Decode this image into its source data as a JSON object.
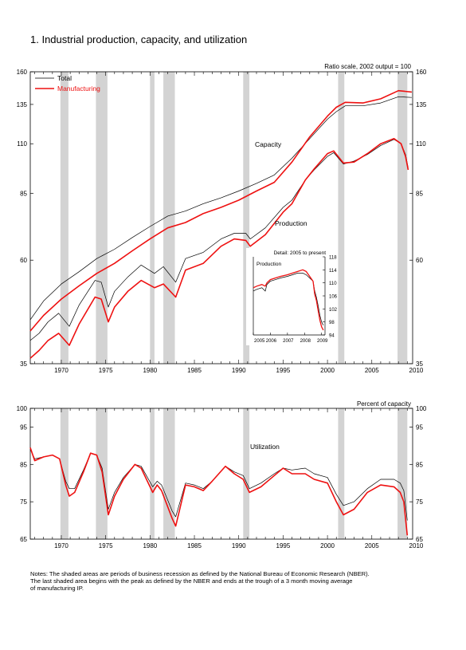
{
  "page": {
    "title": "1.  Industrial production, capacity, and utilization",
    "notes_line1": "Notes: The shaded areas are periods of business recession as defined by the National Bureau of Economic Research (NBER).",
    "notes_line2": "The last shaded area begins with the peak as defined by the NBER and ends at the trough of a 3 month moving average",
    "notes_line3": "of manufacturing IP."
  },
  "colors": {
    "total": "#000000",
    "manufacturing": "#ee1111",
    "recession": "#d3d3d3"
  },
  "chart_data": [
    {
      "id": "capacity-production",
      "type": "line",
      "scale": "log",
      "scale_note": "Ratio scale, 2002 output = 100",
      "xlim": [
        1966.5,
        2009.6
      ],
      "ylim": [
        35,
        160
      ],
      "yticks": [
        35,
        60,
        85,
        110,
        135,
        160
      ],
      "xticks": [
        1970,
        1975,
        1980,
        1985,
        1990,
        1995,
        2000,
        2005,
        2010
      ],
      "legend": {
        "placement": "top-left",
        "entries": [
          "Total",
          "Manufacturing"
        ]
      },
      "annotations": {
        "capacity": "Capacity",
        "production": "Production"
      },
      "recessions": [
        [
          1969.9,
          1970.8
        ],
        [
          1973.9,
          1975.2
        ],
        [
          1980.0,
          1980.5
        ],
        [
          1981.5,
          1982.8
        ],
        [
          1990.5,
          1991.2
        ],
        [
          2001.2,
          2001.9
        ],
        [
          2007.9,
          2009.0
        ]
      ],
      "series": [
        {
          "name": "Total",
          "role": "capacity",
          "x": [
            1966.5,
            1968,
            1970,
            1972,
            1974,
            1976,
            1978,
            1980,
            1982,
            1984,
            1986,
            1988,
            1990,
            1992,
            1994,
            1996,
            1998,
            2000,
            2001,
            2002,
            2004,
            2006,
            2008,
            2009.5
          ],
          "y": [
            44,
            48.5,
            53,
            56.5,
            60.5,
            63.5,
            67.5,
            71.5,
            75.5,
            77.5,
            80.5,
            83,
            86,
            89.5,
            93.5,
            102,
            113,
            125,
            130,
            134,
            134,
            136,
            140.5,
            140
          ]
        },
        {
          "name": "Manufacturing",
          "role": "capacity",
          "x": [
            1966.5,
            1968,
            1970,
            1972,
            1974,
            1976,
            1978,
            1980,
            1982,
            1984,
            1986,
            1988,
            1990,
            1992,
            1994,
            1996,
            1998,
            2000,
            2001,
            2002,
            2004,
            2006,
            2008,
            2009.5
          ],
          "y": [
            41.5,
            45,
            49,
            52.5,
            56,
            59,
            63,
            67,
            71,
            73,
            76.5,
            79,
            82,
            86,
            90,
            100,
            114,
            127,
            133,
            136.5,
            136,
            139,
            145,
            144
          ]
        },
        {
          "name": "Total",
          "role": "production",
          "x": [
            1966.5,
            1967.5,
            1968.5,
            1969.7,
            1970.9,
            1972,
            1973.8,
            1974.5,
            1975.3,
            1976,
            1977.5,
            1979,
            1980.5,
            1981.5,
            1982.9,
            1984,
            1986,
            1988,
            1989.5,
            1990.8,
            1991.3,
            1993,
            1995,
            1996,
            1997.5,
            1998.5,
            2000,
            2000.7,
            2001.8,
            2003,
            2004.5,
            2006,
            2007.5,
            2008.3,
            2008.8,
            2009.1
          ],
          "y": [
            39.5,
            41,
            43.5,
            45.5,
            42.5,
            47.5,
            54,
            53.5,
            47,
            51,
            55,
            58.5,
            56,
            58,
            53.5,
            60.5,
            62.5,
            67,
            69,
            69,
            67,
            71,
            79,
            82,
            91,
            96,
            103,
            105,
            99,
            100.5,
            104,
            109,
            112.5,
            110,
            104,
            97
          ]
        },
        {
          "name": "Manufacturing",
          "role": "production",
          "x": [
            1966.5,
            1967.5,
            1968.5,
            1969.7,
            1970.9,
            1972,
            1973.8,
            1974.5,
            1975.3,
            1976,
            1977.5,
            1979,
            1980.5,
            1981.5,
            1982.9,
            1984,
            1986,
            1988,
            1989.5,
            1990.8,
            1991.3,
            1993,
            1995,
            1996,
            1997.5,
            1998.5,
            2000,
            2000.7,
            2001.8,
            2003,
            2004.5,
            2006,
            2007.5,
            2008.3,
            2008.8,
            2009.1
          ],
          "y": [
            36,
            37.5,
            39.5,
            41,
            38.5,
            43,
            49.5,
            49,
            43.5,
            47,
            51,
            54,
            52,
            53,
            49.5,
            57,
            59,
            64.5,
            67,
            66.5,
            64.5,
            68.5,
            77,
            80.5,
            91,
            96.5,
            104.5,
            106,
            99.5,
            100,
            104.5,
            110,
            113,
            110,
            103,
            96
          ]
        }
      ]
    },
    {
      "id": "detail-production",
      "type": "line",
      "title": "Detail: 2005 to present",
      "label": "Production",
      "xlim": [
        2005,
        2009.2
      ],
      "ylim": [
        94,
        118
      ],
      "yticks": [
        94,
        98,
        102,
        106,
        110,
        114,
        118
      ],
      "xticks": [
        2005,
        2006,
        2007,
        2008,
        2009
      ],
      "series": [
        {
          "name": "Total",
          "x": [
            2005,
            2005.2,
            2005.5,
            2005.7,
            2005.8,
            2006,
            2006.3,
            2006.6,
            2007,
            2007.3,
            2007.6,
            2007.9,
            2008.1,
            2008.3,
            2008.5,
            2008.6,
            2008.7,
            2008.8,
            2008.9,
            2009,
            2009.1
          ],
          "y": [
            107.5,
            108,
            108.5,
            107.5,
            109.5,
            110.5,
            111,
            111.5,
            112,
            112.5,
            113,
            113,
            112.5,
            111.5,
            110.5,
            107.5,
            105.5,
            103,
            100,
            98,
            97
          ]
        },
        {
          "name": "Manufacturing",
          "x": [
            2005,
            2005.2,
            2005.5,
            2005.7,
            2005.8,
            2006,
            2006.3,
            2006.6,
            2007,
            2007.3,
            2007.6,
            2007.9,
            2008.1,
            2008.3,
            2008.5,
            2008.6,
            2008.7,
            2008.8,
            2008.9,
            2009,
            2009.1
          ],
          "y": [
            108.5,
            109,
            109.5,
            109,
            110,
            111,
            111.5,
            112,
            112.5,
            113,
            113.5,
            114,
            113.5,
            112,
            110.5,
            106.5,
            104.5,
            101.5,
            98.5,
            96.5,
            95.5
          ]
        }
      ]
    },
    {
      "id": "utilization",
      "type": "line",
      "scale_note": "Percent of capacity",
      "annotation": "Utilization",
      "xlim": [
        1966.5,
        2009.6
      ],
      "ylim": [
        65,
        100
      ],
      "yticks": [
        65,
        75,
        85,
        95,
        100
      ],
      "xticks": [
        1970,
        1975,
        1980,
        1985,
        1990,
        1995,
        2000,
        2005,
        2010
      ],
      "recessions": [
        [
          1969.9,
          1970.8
        ],
        [
          1973.9,
          1975.2
        ],
        [
          1980.0,
          1980.5
        ],
        [
          1981.5,
          1982.8
        ],
        [
          1990.5,
          1991.2
        ],
        [
          2001.2,
          2001.9
        ],
        [
          2007.9,
          2009.0
        ]
      ],
      "series": [
        {
          "name": "Total",
          "x": [
            1966.5,
            1967,
            1968,
            1969,
            1969.8,
            1970.5,
            1970.9,
            1971.5,
            1972.5,
            1973.3,
            1974,
            1974.6,
            1975.3,
            1976,
            1977,
            1978.3,
            1979,
            1980.3,
            1980.8,
            1981.3,
            1982.5,
            1982.9,
            1984,
            1985,
            1986,
            1987,
            1988.5,
            1989.5,
            1990.5,
            1991.2,
            1992.5,
            1994,
            1995,
            1996,
            1997.5,
            1998.5,
            2000,
            2001,
            2001.8,
            2003,
            2004.5,
            2006,
            2007.5,
            2008.2,
            2008.6,
            2009
          ],
          "y": [
            89,
            86.5,
            87,
            87.5,
            86.5,
            80.5,
            78.5,
            78.5,
            83.5,
            88,
            87.5,
            84,
            73,
            77.5,
            81.5,
            85,
            84.5,
            79,
            80.5,
            79.5,
            72.5,
            71,
            80,
            79.5,
            78.5,
            80.5,
            84.5,
            83,
            82,
            78.5,
            80,
            82.5,
            84,
            83.5,
            84,
            82.5,
            81.5,
            77,
            74,
            75,
            78.5,
            81,
            81,
            80,
            78,
            70
          ]
        },
        {
          "name": "Manufacturing",
          "x": [
            1966.5,
            1967,
            1968,
            1969,
            1969.8,
            1970.5,
            1970.9,
            1971.5,
            1972.5,
            1973.3,
            1974,
            1974.6,
            1975.3,
            1976,
            1977,
            1978.3,
            1979,
            1980.3,
            1980.8,
            1981.3,
            1982.5,
            1982.9,
            1984,
            1985,
            1986,
            1987,
            1988.5,
            1989.5,
            1990.5,
            1991.2,
            1992.5,
            1994,
            1995,
            1996,
            1997.5,
            1998.5,
            2000,
            2001,
            2001.8,
            2003,
            2004.5,
            2006,
            2007.5,
            2008.2,
            2008.6,
            2009
          ],
          "y": [
            89.5,
            86,
            87,
            87.5,
            86.5,
            79.5,
            76.5,
            77.5,
            83,
            88,
            87.5,
            83,
            71.5,
            76.5,
            81,
            85,
            84,
            77.5,
            79.5,
            78,
            70.5,
            68.5,
            79.5,
            79,
            78,
            80.5,
            84.5,
            82.5,
            81,
            77.5,
            79,
            82,
            84,
            82.5,
            82.5,
            81,
            80,
            75,
            71.5,
            73,
            77.5,
            79.5,
            79,
            77.5,
            75,
            66
          ]
        }
      ]
    }
  ]
}
